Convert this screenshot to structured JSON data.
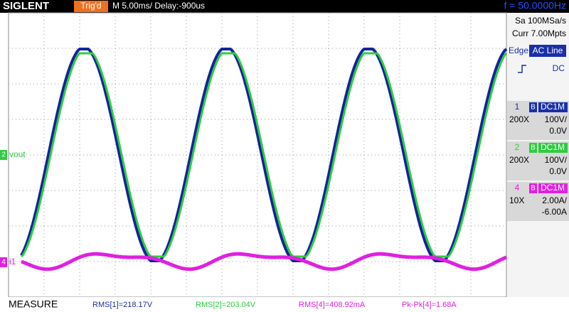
{
  "header": {
    "brand": "SIGLENT",
    "trigger_state": "Trig'd",
    "timebase": "M 5.00ms/ Delay:-900us",
    "frequency": "f = 50.0000Hz"
  },
  "side": {
    "sample_rate": "Sa 100MSa/s",
    "memory": "Curr 7.00Mpts",
    "trigger_source": "Edge",
    "trigger_type": "AC Line",
    "trigger_coupling": "DC",
    "channels": [
      {
        "number": "1",
        "bandwidth": "B",
        "coupling": "DC1M",
        "probe": "200X",
        "scale": "100V/",
        "offset": "0.0V"
      },
      {
        "number": "2",
        "bandwidth": "B",
        "coupling": "DC1M",
        "probe": "200X",
        "scale": "100V/",
        "offset": "0.0V"
      },
      {
        "number": "4",
        "bandwidth": "B",
        "coupling": "DC1M",
        "probe": "10X",
        "scale": "2.00A/",
        "offset": "-6.00A"
      }
    ]
  },
  "markers": [
    {
      "channel": "2",
      "label": "vout"
    },
    {
      "channel": "4",
      "label": "i1"
    }
  ],
  "measure": {
    "label": "MEASURE",
    "items": [
      "RMS[1]=218.17V",
      "RMS[2]=203.04V",
      "RMS[4]=408.92mA",
      "Pk-Pk[4]=1.68A"
    ]
  }
}
